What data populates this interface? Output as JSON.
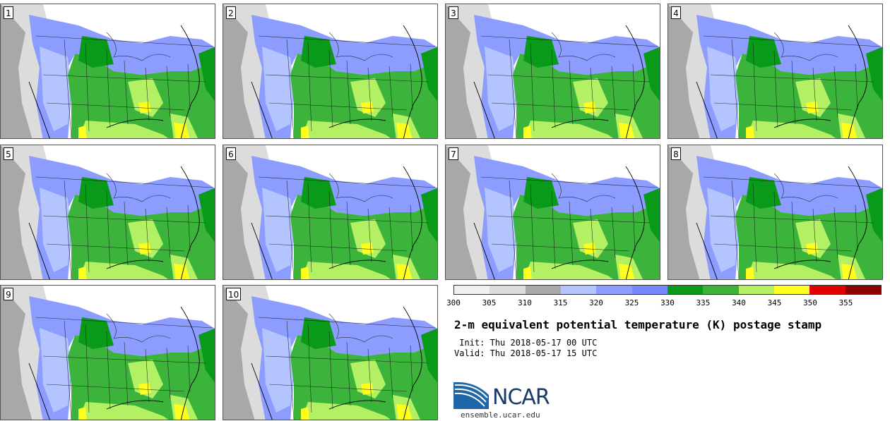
{
  "panels": [
    "1",
    "2",
    "3",
    "4",
    "5",
    "6",
    "7",
    "8",
    "9",
    "10"
  ],
  "legend": {
    "colors": [
      "#f0f0f0",
      "#dcdcdc",
      "#a8a8a8",
      "#b4c4ff",
      "#8c9cff",
      "#7488ff",
      "#0a9a1a",
      "#3cb43c",
      "#b4f064",
      "#ffff1e",
      "#e00000",
      "#8c0000"
    ],
    "ticks": [
      "300",
      "305",
      "310",
      "315",
      "320",
      "325",
      "330",
      "335",
      "340",
      "345",
      "350",
      "355"
    ]
  },
  "title": "2-m equivalent potential temperature (K) postage stamp",
  "init_line": " Init: Thu 2018-05-17 00 UTC",
  "valid_line": "Valid: Thu 2018-05-17 15 UTC",
  "logo": {
    "name": "NCAR",
    "url": "ensemble.ucar.edu"
  }
}
